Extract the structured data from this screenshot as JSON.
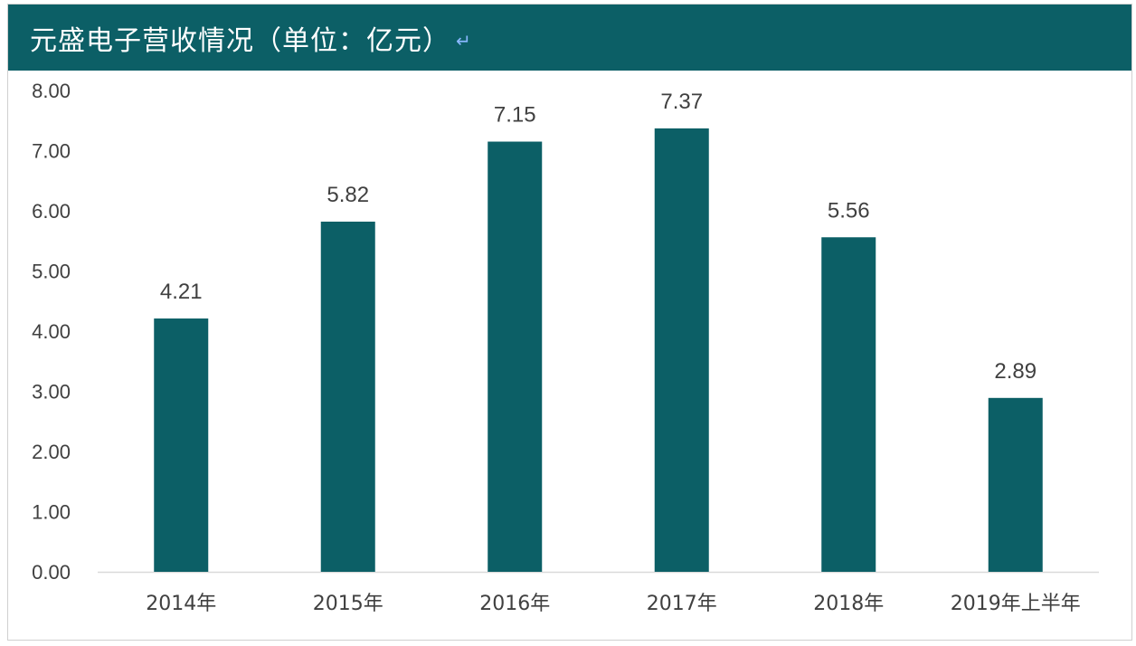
{
  "header": {
    "title": "元盛电子营收情况（单位：亿元）",
    "return_mark": "↵"
  },
  "colors": {
    "header_bg": "#0c5f66",
    "bar": "#0c5f66",
    "axis": "#d9d9d9",
    "text": "#404040"
  },
  "chart_data": {
    "type": "bar",
    "title": "元盛电子营收情况（单位：亿元）",
    "categories": [
      "2014年",
      "2015年",
      "2016年",
      "2017年",
      "2018年",
      "2019年上半年"
    ],
    "values": [
      4.21,
      5.82,
      7.15,
      7.37,
      5.56,
      2.89
    ],
    "value_labels": [
      "4.21",
      "5.82",
      "7.15",
      "7.37",
      "5.56",
      "2.89"
    ],
    "ylim": [
      0,
      8
    ],
    "yticks": [
      "0.00",
      "1.00",
      "2.00",
      "3.00",
      "4.00",
      "5.00",
      "6.00",
      "7.00",
      "8.00"
    ],
    "grid": false,
    "xlabel": "",
    "ylabel": ""
  }
}
